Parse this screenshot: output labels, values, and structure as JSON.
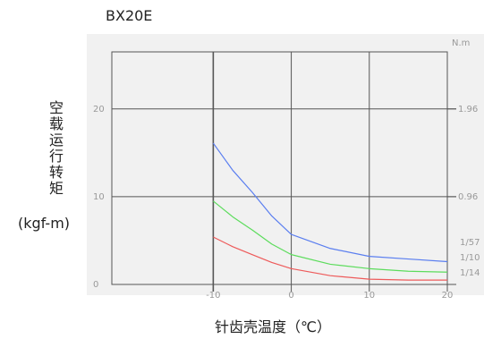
{
  "chart_data": {
    "type": "line",
    "title": "BX20E",
    "y_label": "空载运行转矩",
    "y_unit": "(kgf-m)",
    "x_label": "针齿壳温度（℃）",
    "y2_unit": "N.m",
    "x": [
      -10,
      -7.5,
      -5,
      -2.5,
      0,
      5,
      10,
      15,
      20
    ],
    "series": [
      {
        "name": "1/57",
        "color": "#5a7ef0",
        "values": [
          16.1,
          13.0,
          10.5,
          7.8,
          5.7,
          4.1,
          3.2,
          2.9,
          2.6
        ]
      },
      {
        "name": "1/10",
        "color": "#5cdc5c",
        "values": [
          9.5,
          7.7,
          6.2,
          4.6,
          3.4,
          2.3,
          1.8,
          1.5,
          1.4
        ]
      },
      {
        "name": "1/14",
        "color": "#ee5a5a",
        "values": [
          5.4,
          4.3,
          3.4,
          2.5,
          1.8,
          1.0,
          0.6,
          0.5,
          0.5
        ]
      }
    ],
    "xlim": [
      -23,
      20
    ],
    "xticks": [
      -10,
      0,
      10,
      20
    ],
    "ylim": [
      0,
      26.5
    ],
    "yticks": [
      0,
      10,
      20
    ],
    "y2lim": [
      -0.04,
      2.61
    ],
    "y2ticks": [
      0.96,
      1.96
    ],
    "grid": true
  }
}
